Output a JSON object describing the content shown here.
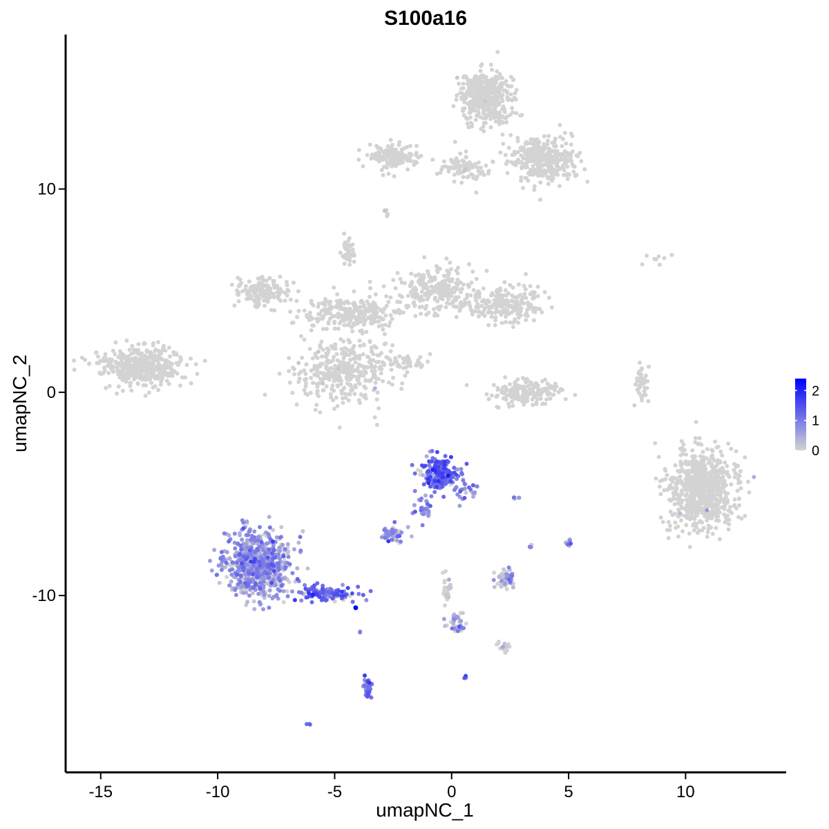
{
  "chart_data": {
    "type": "scatter",
    "title": "S100a16",
    "xlabel": "umapNC_1",
    "ylabel": "umapNC_2",
    "xlim": [
      -16.5,
      14.3
    ],
    "ylim": [
      -18.7,
      17.6
    ],
    "xticks": [
      -15,
      -10,
      -5,
      0,
      5,
      10
    ],
    "xtick_labels": [
      "-15",
      "-10",
      "-5",
      "0",
      "5",
      "10"
    ],
    "yticks": [
      -10,
      0,
      10
    ],
    "ytick_labels": [
      "-10",
      "0",
      "10"
    ],
    "grid": false,
    "legend_position": "right",
    "color_scale": {
      "low_color": "#d3d3d3",
      "high_color": "#0000ff",
      "min": 0,
      "max": 2.4,
      "breaks": [
        0,
        1,
        2
      ],
      "break_labels": [
        "0",
        "1",
        "2"
      ]
    },
    "clusters": [
      {
        "center": [
          -13.4,
          1.3
        ],
        "spread": [
          1.5,
          0.75
        ],
        "n": 420,
        "expr_mean": 0.0,
        "expr_frac": 0.0
      },
      {
        "center": [
          -8.1,
          5.0
        ],
        "spread": [
          1.1,
          0.6
        ],
        "n": 160,
        "expr_mean": 0.0,
        "expr_frac": 0.0
      },
      {
        "center": [
          -4.6,
          1.1
        ],
        "spread": [
          1.7,
          1.3
        ],
        "n": 360,
        "expr_mean": 0.05,
        "expr_frac": 0.01
      },
      {
        "center": [
          -4.2,
          3.9
        ],
        "spread": [
          1.8,
          0.7
        ],
        "n": 260,
        "expr_mean": 0.0,
        "expr_frac": 0.0
      },
      {
        "center": [
          -0.6,
          5.0
        ],
        "spread": [
          1.4,
          1.0
        ],
        "n": 260,
        "expr_mean": 0.0,
        "expr_frac": 0.0
      },
      {
        "center": [
          2.3,
          4.3
        ],
        "spread": [
          1.3,
          0.8
        ],
        "n": 200,
        "expr_mean": 0.0,
        "expr_frac": 0.0
      },
      {
        "center": [
          -4.4,
          7.0
        ],
        "spread": [
          0.25,
          0.6
        ],
        "n": 40,
        "expr_mean": 0.0,
        "expr_frac": 0.0
      },
      {
        "center": [
          -1.9,
          1.5
        ],
        "spread": [
          0.8,
          0.3
        ],
        "n": 50,
        "expr_mean": 0.0,
        "expr_frac": 0.0
      },
      {
        "center": [
          1.5,
          14.5
        ],
        "spread": [
          0.9,
          1.0
        ],
        "n": 420,
        "expr_mean": 0.01,
        "expr_frac": 0.005
      },
      {
        "center": [
          4.0,
          11.5
        ],
        "spread": [
          1.3,
          1.0
        ],
        "n": 340,
        "expr_mean": 0.0,
        "expr_frac": 0.0
      },
      {
        "center": [
          -2.5,
          11.6
        ],
        "spread": [
          0.9,
          0.5
        ],
        "n": 150,
        "expr_mean": 0.0,
        "expr_frac": 0.0
      },
      {
        "center": [
          0.5,
          11.0
        ],
        "spread": [
          0.9,
          0.6
        ],
        "n": 90,
        "expr_mean": 0.01,
        "expr_frac": 0.01
      },
      {
        "center": [
          -2.8,
          8.8
        ],
        "spread": [
          0.08,
          0.25
        ],
        "n": 6,
        "expr_mean": 0.2,
        "expr_frac": 0.3
      },
      {
        "center": [
          3.2,
          0.0
        ],
        "spread": [
          1.2,
          0.5
        ],
        "n": 170,
        "expr_mean": 0.0,
        "expr_frac": 0.0
      },
      {
        "center": [
          8.1,
          0.4
        ],
        "spread": [
          0.25,
          0.8
        ],
        "n": 45,
        "expr_mean": 0.0,
        "expr_frac": 0.0
      },
      {
        "center": [
          8.5,
          6.6
        ],
        "spread": [
          1.0,
          0.25
        ],
        "n": 8,
        "expr_mean": 0.0,
        "expr_frac": 0.0
      },
      {
        "center": [
          10.7,
          -4.8
        ],
        "spread": [
          1.2,
          1.6
        ],
        "n": 720,
        "expr_mean": 0.01,
        "expr_frac": 0.004
      },
      {
        "center": [
          -8.3,
          -8.4
        ],
        "spread": [
          1.2,
          1.3
        ],
        "n": 720,
        "expr_mean": 0.6,
        "expr_frac": 0.85
      },
      {
        "center": [
          -5.4,
          -9.9
        ],
        "spread": [
          1.1,
          0.35
        ],
        "n": 120,
        "expr_mean": 1.1,
        "expr_frac": 0.95
      },
      {
        "center": [
          -0.5,
          -4.0
        ],
        "spread": [
          0.6,
          0.7
        ],
        "n": 200,
        "expr_mean": 1.2,
        "expr_frac": 0.95
      },
      {
        "center": [
          0.6,
          -4.8
        ],
        "spread": [
          0.5,
          0.45
        ],
        "n": 30,
        "expr_mean": 0.8,
        "expr_frac": 0.85
      },
      {
        "center": [
          -1.2,
          -5.7
        ],
        "spread": [
          0.3,
          0.5
        ],
        "n": 30,
        "expr_mean": 0.8,
        "expr_frac": 0.9
      },
      {
        "center": [
          -2.5,
          -7.0
        ],
        "spread": [
          0.45,
          0.35
        ],
        "n": 45,
        "expr_mean": 0.7,
        "expr_frac": 0.8
      },
      {
        "center": [
          2.3,
          -9.3
        ],
        "spread": [
          0.35,
          0.45
        ],
        "n": 50,
        "expr_mean": 0.5,
        "expr_frac": 0.7
      },
      {
        "center": [
          0.2,
          -11.4
        ],
        "spread": [
          0.4,
          0.5
        ],
        "n": 35,
        "expr_mean": 0.6,
        "expr_frac": 0.75
      },
      {
        "center": [
          2.2,
          -12.5
        ],
        "spread": [
          0.3,
          0.2
        ],
        "n": 15,
        "expr_mean": 0.3,
        "expr_frac": 0.4
      },
      {
        "center": [
          -3.6,
          -14.6
        ],
        "spread": [
          0.15,
          0.45
        ],
        "n": 40,
        "expr_mean": 0.9,
        "expr_frac": 0.9
      },
      {
        "center": [
          -0.2,
          -9.8
        ],
        "spread": [
          0.15,
          0.7
        ],
        "n": 25,
        "expr_mean": 0.1,
        "expr_frac": 0.2
      },
      {
        "center": [
          5.0,
          -7.4
        ],
        "spread": [
          0.15,
          0.2
        ],
        "n": 10,
        "expr_mean": 0.8,
        "expr_frac": 0.8
      },
      {
        "center": [
          3.4,
          -7.6
        ],
        "spread": [
          0.1,
          0.1
        ],
        "n": 4,
        "expr_mean": 0.7,
        "expr_frac": 0.8
      },
      {
        "center": [
          2.7,
          -5.2
        ],
        "spread": [
          0.15,
          0.05
        ],
        "n": 5,
        "expr_mean": 0.8,
        "expr_frac": 0.8
      },
      {
        "center": [
          0.6,
          -14.0
        ],
        "spread": [
          0.08,
          0.08
        ],
        "n": 4,
        "expr_mean": 1.2,
        "expr_frac": 1.0
      },
      {
        "center": [
          -6.1,
          -16.3
        ],
        "spread": [
          0.1,
          0.06
        ],
        "n": 3,
        "expr_mean": 1.0,
        "expr_frac": 1.0
      },
      {
        "center": [
          -3.9,
          -11.8
        ],
        "spread": [
          0.06,
          0.06
        ],
        "n": 2,
        "expr_mean": 0.8,
        "expr_frac": 1.0
      }
    ],
    "highlight_points": [
      {
        "x": -4.1,
        "y": -10.6,
        "value": 2.4
      }
    ]
  }
}
